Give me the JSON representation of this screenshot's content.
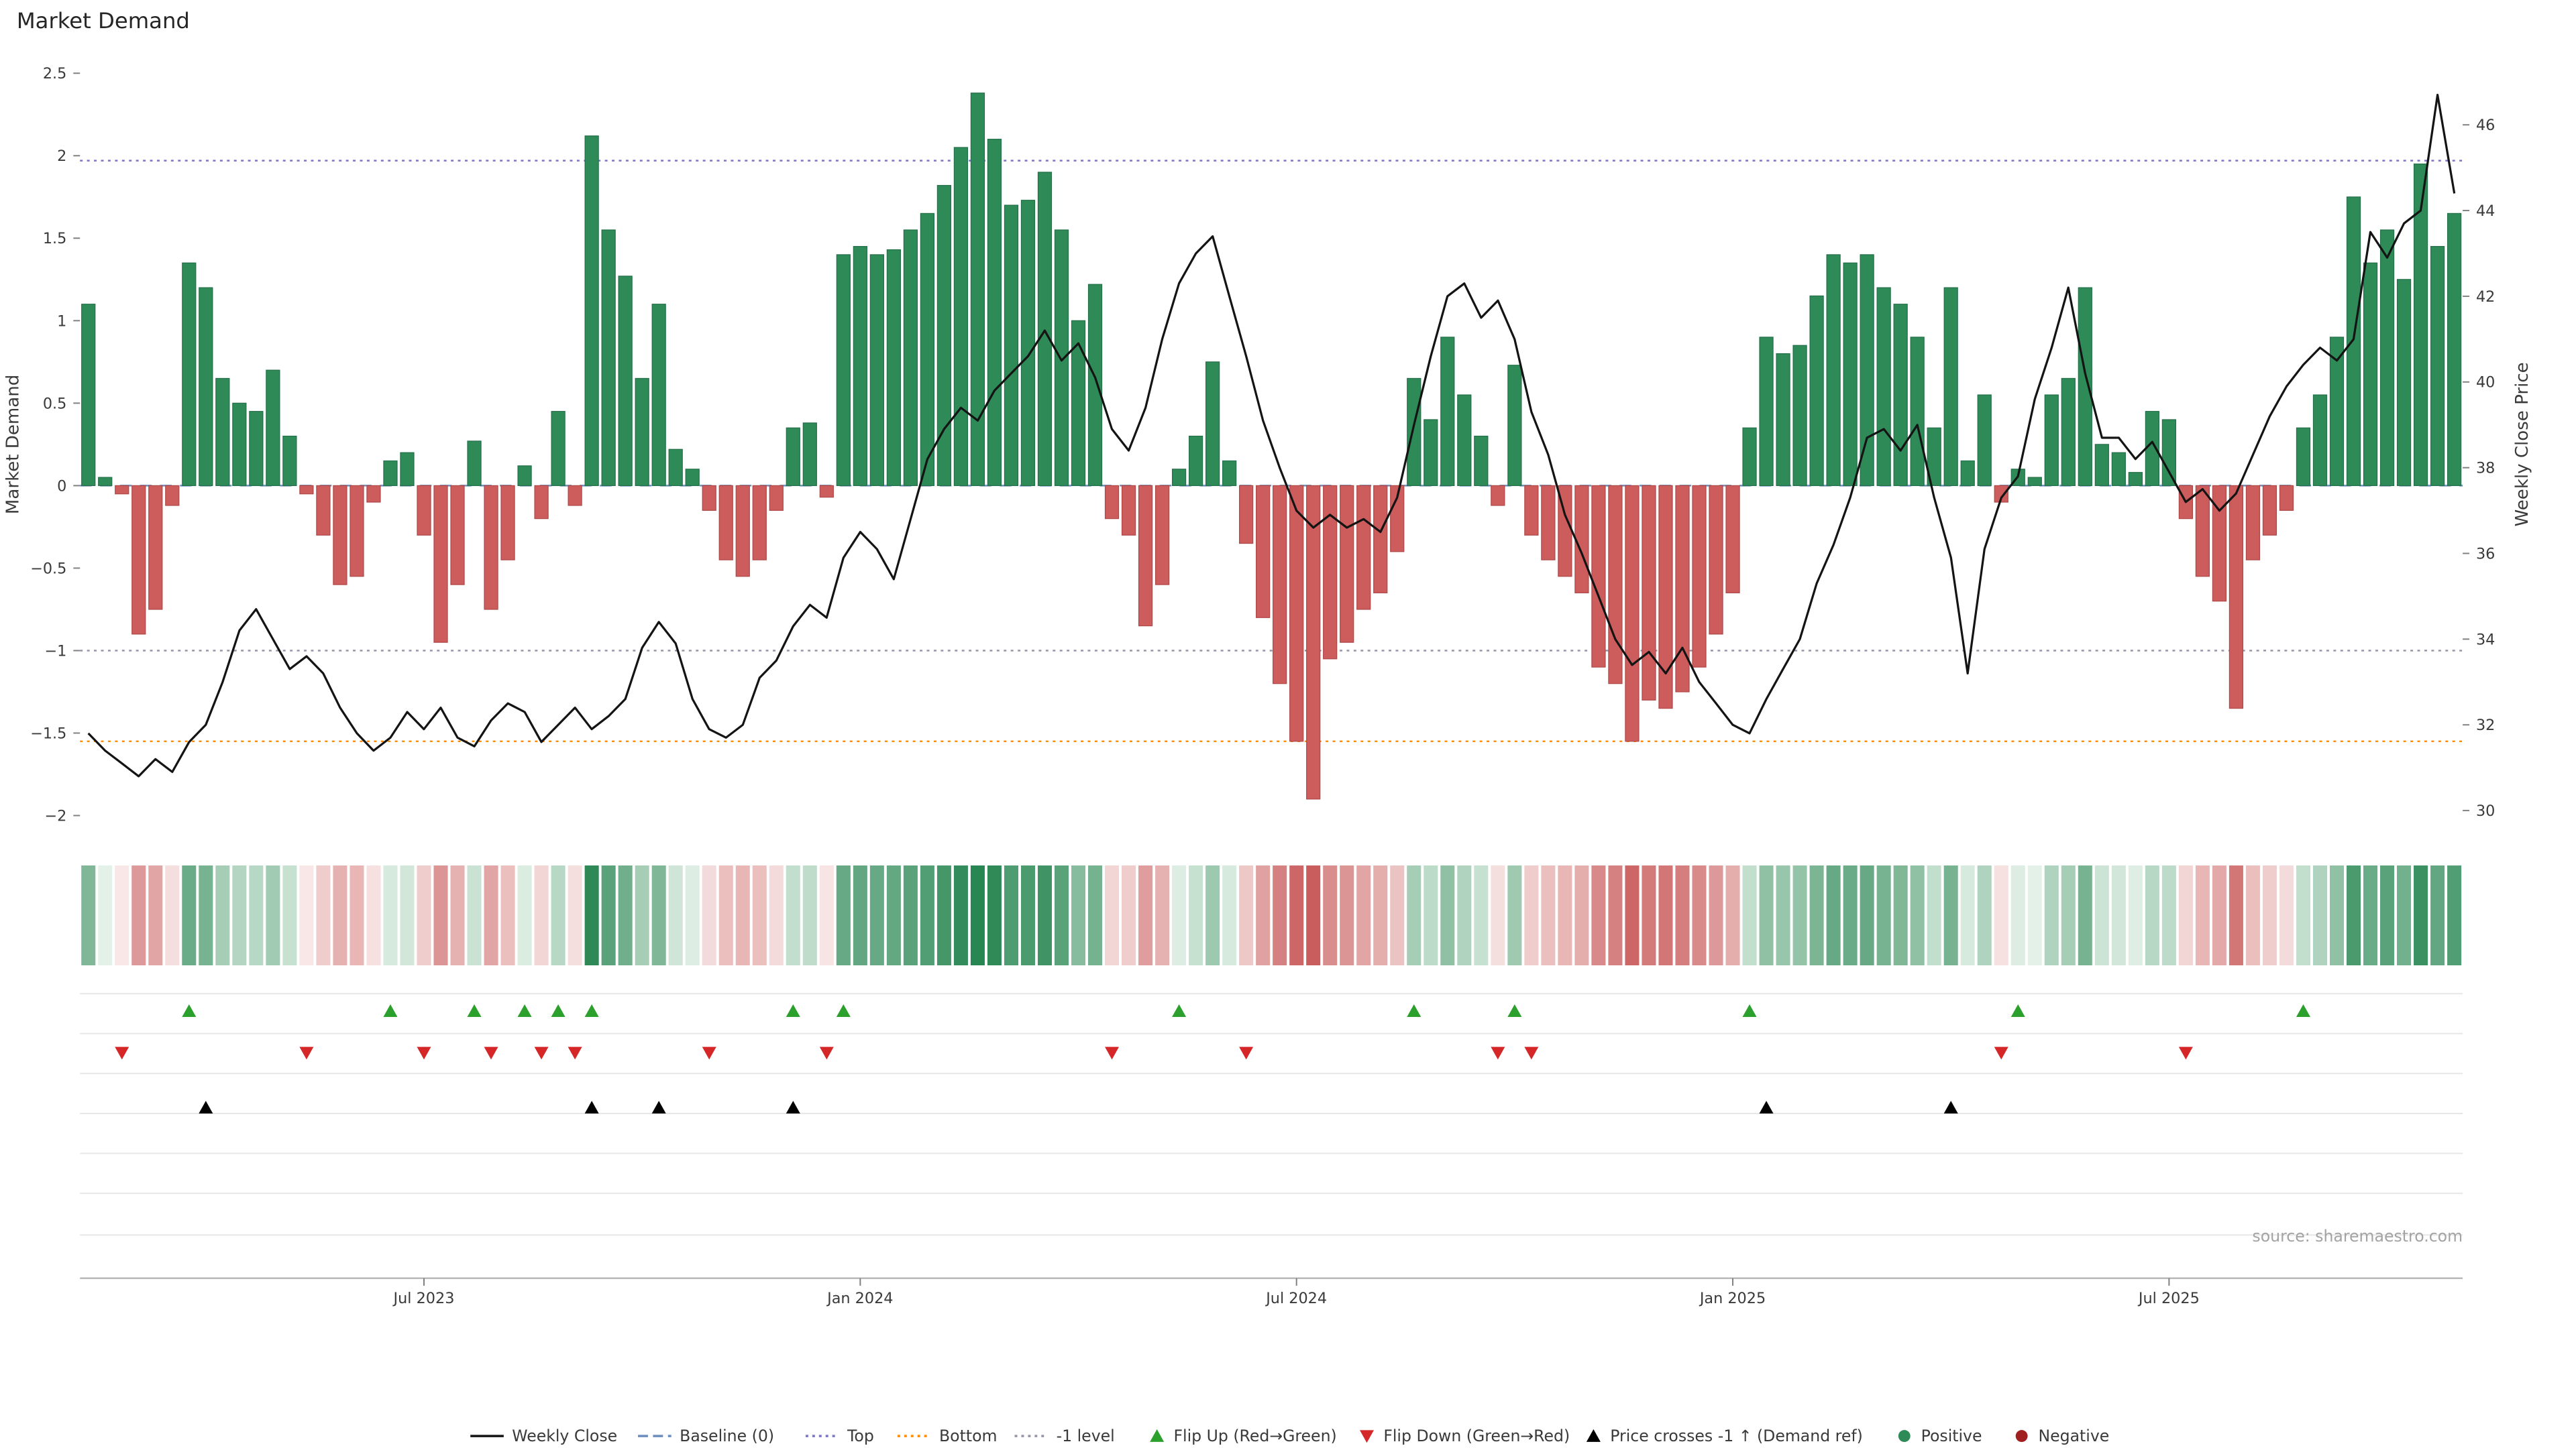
{
  "title": "Market Demand",
  "source": "source: sharemaestro.com",
  "axes": {
    "left_label": "Market Demand",
    "right_label": "Weekly Close Price"
  },
  "chart_data": {
    "type": "bar+line",
    "x_unit": "week",
    "x_ticks": [
      {
        "index": 20,
        "label": "Jul 2023"
      },
      {
        "index": 46,
        "label": "Jan 2024"
      },
      {
        "index": 72,
        "label": "Jul 2024"
      },
      {
        "index": 98,
        "label": "Jan 2025"
      },
      {
        "index": 124,
        "label": "Jul 2025"
      }
    ],
    "ylim_left": [
      -2,
      2.5
    ],
    "ylim_right": [
      30,
      46
    ],
    "left_ticks": [
      2.5,
      2,
      1.5,
      1,
      0.5,
      0,
      -0.5,
      -1,
      -1.5,
      -2
    ],
    "right_ticks": [
      46,
      44,
      42,
      40,
      38,
      36,
      34,
      32,
      30
    ],
    "series": [
      {
        "name": "Market Demand",
        "type": "bar",
        "axis": "left",
        "values": [
          1.1,
          0.05,
          -0.05,
          -0.9,
          -0.75,
          -0.12,
          1.35,
          1.2,
          0.65,
          0.5,
          0.45,
          0.7,
          0.3,
          -0.05,
          -0.3,
          -0.6,
          -0.55,
          -0.1,
          0.15,
          0.2,
          -0.3,
          -0.95,
          -0.6,
          0.27,
          -0.75,
          -0.45,
          0.12,
          -0.2,
          0.45,
          -0.12,
          2.12,
          1.55,
          1.27,
          0.65,
          1.1,
          0.22,
          0.1,
          -0.15,
          -0.45,
          -0.55,
          -0.45,
          -0.15,
          0.35,
          0.38,
          -0.07,
          1.4,
          1.45,
          1.4,
          1.43,
          1.55,
          1.65,
          1.82,
          2.05,
          2.38,
          2.1,
          1.7,
          1.73,
          1.9,
          1.55,
          1.0,
          1.22,
          -0.2,
          -0.3,
          -0.85,
          -0.6,
          0.1,
          0.3,
          0.75,
          0.15,
          -0.35,
          -0.8,
          -1.2,
          -1.55,
          -1.9,
          -1.05,
          -0.95,
          -0.75,
          -0.65,
          -0.4,
          0.65,
          0.4,
          0.9,
          0.55,
          0.3,
          -0.12,
          0.73,
          -0.3,
          -0.45,
          -0.55,
          -0.65,
          -1.1,
          -1.2,
          -1.55,
          -1.3,
          -1.35,
          -1.25,
          -1.1,
          -0.9,
          -0.65,
          0.35,
          0.9,
          0.8,
          0.85,
          1.15,
          1.4,
          1.35,
          1.4,
          1.2,
          1.1,
          0.9,
          0.35,
          1.2,
          0.15,
          0.55,
          -0.1,
          0.1,
          0.05,
          0.55,
          0.65,
          1.2,
          0.25,
          0.2,
          0.08,
          0.45,
          0.4,
          -0.2,
          -0.55,
          -0.7,
          -1.35,
          -0.45,
          -0.3,
          -0.15,
          0.35,
          0.55,
          0.9,
          1.75,
          1.35,
          1.55,
          1.25,
          1.95,
          1.45,
          1.65
        ]
      },
      {
        "name": "Weekly Close",
        "type": "line",
        "axis": "right",
        "values": [
          31.8,
          31.4,
          31.1,
          30.8,
          31.2,
          30.9,
          31.6,
          32.0,
          33.0,
          34.2,
          34.7,
          34.0,
          33.3,
          33.6,
          33.2,
          32.4,
          31.8,
          31.4,
          31.7,
          32.3,
          31.9,
          32.4,
          31.7,
          31.5,
          32.1,
          32.5,
          32.3,
          31.6,
          32.0,
          32.4,
          31.9,
          32.2,
          32.6,
          33.8,
          34.4,
          33.9,
          32.6,
          31.9,
          31.7,
          32.0,
          33.1,
          33.5,
          34.3,
          34.8,
          34.5,
          35.9,
          36.5,
          36.1,
          35.4,
          36.8,
          38.2,
          38.9,
          39.4,
          39.1,
          39.8,
          40.2,
          40.6,
          41.2,
          40.5,
          40.9,
          40.1,
          38.9,
          38.4,
          39.4,
          41.0,
          42.3,
          43.0,
          43.4,
          42.0,
          40.6,
          39.1,
          38.0,
          37.0,
          36.6,
          36.9,
          36.6,
          36.8,
          36.5,
          37.3,
          39.0,
          40.6,
          42.0,
          42.3,
          41.5,
          41.9,
          41.0,
          39.3,
          38.3,
          36.9,
          36.0,
          35.0,
          34.0,
          33.4,
          33.7,
          33.2,
          33.8,
          33.0,
          32.5,
          32.0,
          31.8,
          32.6,
          33.3,
          34.0,
          35.3,
          36.2,
          37.3,
          38.7,
          38.9,
          38.4,
          39.0,
          37.3,
          35.9,
          33.2,
          36.1,
          37.3,
          37.8,
          39.6,
          40.8,
          42.2,
          40.2,
          38.7,
          38.7,
          38.2,
          38.6,
          37.9,
          37.2,
          37.5,
          37.0,
          37.4,
          38.3,
          39.2,
          39.9,
          40.4,
          40.8,
          40.5,
          41.0,
          43.5,
          42.9,
          43.7,
          44.0,
          46.7,
          44.4
        ]
      }
    ],
    "ref_lines": [
      {
        "name": "Baseline (0)",
        "value": 0,
        "style": "dashed",
        "color": "#6c8ebf"
      },
      {
        "name": "Top",
        "value": 1.97,
        "style": "dotted",
        "color": "#7b74c9"
      },
      {
        "name": "Bottom",
        "value": -1.55,
        "style": "dotted",
        "color": "#ff8c00"
      },
      {
        "name": "-1 level",
        "value": -1,
        "style": "dotted",
        "color": "#9a93a8"
      }
    ],
    "price_cross_minus1_indices": [
      7,
      30,
      34,
      42,
      100,
      111
    ],
    "heatmap_note": "strip mirrors bar values: green intensity for positive, red intensity for negative"
  },
  "legend": [
    {
      "label": "Weekly Close",
      "glyph": "line",
      "color": "#141414"
    },
    {
      "label": "Baseline (0)",
      "glyph": "dashed",
      "color": "#6c8ebf"
    },
    {
      "label": "Top",
      "glyph": "dotted",
      "color": "#7b74c9"
    },
    {
      "label": "Bottom",
      "glyph": "dotted",
      "color": "#ff8c00"
    },
    {
      "label": "-1 level",
      "glyph": "dotted",
      "color": "#9a93a8"
    },
    {
      "label": "Flip Up (Red→Green)",
      "glyph": "tri-up",
      "color": "#2ca02c"
    },
    {
      "label": "Flip Down (Green→Red)",
      "glyph": "tri-down",
      "color": "#d62728"
    },
    {
      "label": "Price crosses -1 ↑ (Demand ref)",
      "glyph": "tri-up",
      "color": "#000000"
    },
    {
      "label": "Positive",
      "glyph": "circle",
      "color": "#2e8b57"
    },
    {
      "label": "Negative",
      "glyph": "circle",
      "color": "#a02020"
    }
  ],
  "colors": {
    "positive": "#2e8b57",
    "positive_edge": "#25704a",
    "negative": "#cd5c5c",
    "negative_edge": "#b04848",
    "price_line": "#141414",
    "flip_up": "#2ca02c",
    "flip_down": "#d62728",
    "cross_marker": "#000000"
  }
}
